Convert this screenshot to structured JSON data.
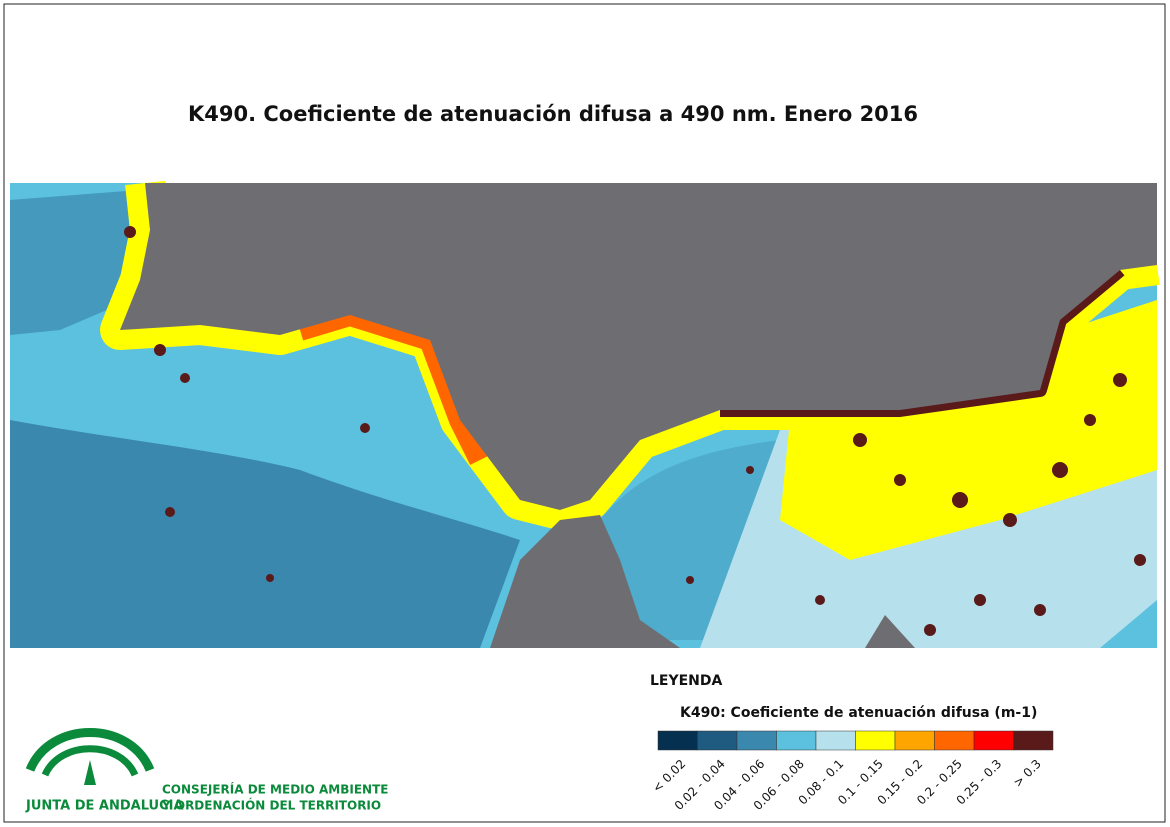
{
  "title": "K490. Coeficiente de atenuación difusa a 490 nm. Enero 2016",
  "legend": {
    "heading": "LEYENDA",
    "title": "K490: Coeficiente de atenuación difusa (m-1)",
    "classes": [
      {
        "label": "< 0.02",
        "color": "#06304f"
      },
      {
        "label": "0.02 - 0.04",
        "color": "#1f5a80"
      },
      {
        "label": "0.04 - 0.06",
        "color": "#3a88ad"
      },
      {
        "label": "0.06 - 0.08",
        "color": "#5bc1df"
      },
      {
        "label": "0.08 - 0.1",
        "color": "#b6e1ec"
      },
      {
        "label": "0.1 - 0.15",
        "color": "#ffff00"
      },
      {
        "label": "0.15 - 0.2",
        "color": "#ffa500"
      },
      {
        "label": "0.2 - 0.25",
        "color": "#ff6600"
      },
      {
        "label": "0.25 - 0.3",
        "color": "#ff0000"
      },
      {
        "label": "> 0.3",
        "color": "#5a1a1a"
      }
    ]
  },
  "logo": {
    "name": "JUNTA DE ANDALUCIA",
    "department": [
      "CONSEJERÍA DE MEDIO AMBIENTE",
      "Y ORDENACIÓN DEL TERRITORIO"
    ]
  }
}
